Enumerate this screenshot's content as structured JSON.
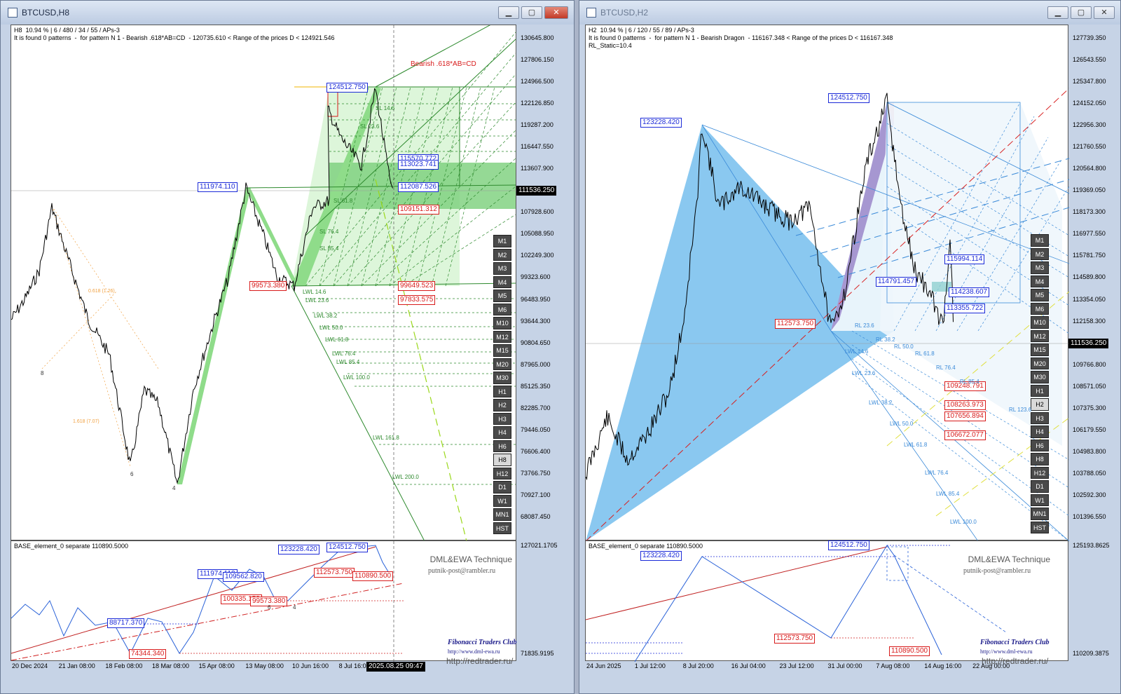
{
  "left": {
    "title": "BTCUSD,H8",
    "info": [
      "H8  10.94 % | 6 / 480 / 34 / 55 / APs-3",
      "It is found 0 patterns  -  for pattern N 1 - Bearish .618*AB=CD  - 120735.610 < Range of the prices D < 124921.546"
    ],
    "pattern_name": "Bearish .618*AB=CD",
    "price_scale": [
      "130645.800",
      "127806.150",
      "124966.500",
      "122126.850",
      "119287.200",
      "116447.550",
      "113607.900",
      "110768.250",
      "107928.600",
      "105088.950",
      "102249.300",
      "99323.600",
      "96483.950",
      "93644.300",
      "90804.650",
      "87965.000",
      "85125.350",
      "82285.700",
      "79446.050",
      "76606.400",
      "73766.750",
      "70927.100",
      "68087.450"
    ],
    "current_price": "111536.250",
    "sub_scale": [
      "127021.1705",
      "71835.9195"
    ],
    "time_axis": [
      "20 Dec 2024",
      "21 Jan 08:00",
      "18 Feb 08:00",
      "18 Mar 08:00",
      "15 Apr 08:00",
      "13 May 08:00",
      "10 Jun 16:00",
      "8 Jul 16:00",
      "5"
    ],
    "crosshair_time": "2025.08.25 09:47",
    "timeframes": [
      "M1",
      "M2",
      "M3",
      "M4",
      "M5",
      "M6",
      "M10",
      "M12",
      "M15",
      "M20",
      "M30",
      "H1",
      "H2",
      "H3",
      "H4",
      "H6",
      "H8",
      "H12",
      "D1",
      "W1",
      "MN1",
      "HST"
    ],
    "selected_tf": "H8",
    "sub_title": "BASE_element_0 separate 110890.5000",
    "price_labels_main": [
      {
        "text": "124512.750",
        "color": "b"
      },
      {
        "text": "115570.772",
        "color": "b"
      },
      {
        "text": "113023.741",
        "color": "b"
      },
      {
        "text": "111974.110",
        "color": "b"
      },
      {
        "text": "112087.526",
        "color": "b"
      },
      {
        "text": "109151.312",
        "color": "r"
      },
      {
        "text": "99573.380",
        "color": "r"
      },
      {
        "text": "99649.523",
        "color": "r"
      },
      {
        "text": "97833.575",
        "color": "r"
      }
    ],
    "levels_main": [
      "LWL 14.6",
      "LWL 23.6",
      "LWL 38.2",
      "LWL 50.0",
      "LWL 61.8",
      "LWL 76.4",
      "LWL 85.4",
      "LWL 100.0",
      "LWL 161.8",
      "LWL 200.0",
      "SL 61.8",
      "SL 76.4",
      "SL 85.4",
      "SL 14.6",
      "SL 23.6"
    ],
    "price_labels_sub": [
      {
        "text": "123228.420",
        "color": "b"
      },
      {
        "text": "124512.750",
        "color": "b"
      },
      {
        "text": "111974.110",
        "color": "b"
      },
      {
        "text": "109562.820",
        "color": "b"
      },
      {
        "text": "112573.750",
        "color": "r"
      },
      {
        "text": "110890.500",
        "color": "r"
      },
      {
        "text": "100335.150",
        "color": "r"
      },
      {
        "text": "99573.380",
        "color": "r"
      },
      {
        "text": "88717.370",
        "color": "b"
      },
      {
        "text": "74344.340",
        "color": "r"
      }
    ],
    "fib_small": [
      "0.618 (1.26)",
      "1.618 (7.07)"
    ],
    "points": [
      "8",
      "6",
      "4",
      "4",
      "6"
    ]
  },
  "right": {
    "title": "BTCUSD,H2",
    "info": [
      "H2  10.94 % | 6 / 120 / 55 / 89 / APs-3",
      "It is found 0 patterns  -  for pattern N 1 - Bearish Dragon  - 116167.348 < Range of the prices D < 116167.348",
      "RL_Static=10.4"
    ],
    "price_scale": [
      "127739.350",
      "126543.550",
      "125347.800",
      "124152.050",
      "122956.300",
      "121760.550",
      "120564.800",
      "119369.050",
      "118173.300",
      "116977.550",
      "115781.750",
      "114589.800",
      "113354.050",
      "112158.300",
      "110962.550",
      "109766.800",
      "108571.050",
      "107375.300",
      "106179.550",
      "104983.800",
      "103788.050",
      "102592.300",
      "101396.550"
    ],
    "current_price": "111536.250",
    "sub_scale": [
      "125193.8625",
      "110209.3875"
    ],
    "time_axis": [
      "24 Jun 2025",
      "1 Jul 12:00",
      "8 Jul 20:00",
      "16 Jul 04:00",
      "23 Jul 12:00",
      "31 Jul 00:00",
      "7 Aug 08:00",
      "14 Aug 16:00",
      "22 Aug 00:00"
    ],
    "timeframes": [
      "M1",
      "M2",
      "M3",
      "M4",
      "M5",
      "M6",
      "M10",
      "M12",
      "M15",
      "M20",
      "M30",
      "H1",
      "H2",
      "H3",
      "H4",
      "H6",
      "H8",
      "H12",
      "D1",
      "W1",
      "MN1",
      "HST"
    ],
    "selected_tf": "H2",
    "sub_title": "BASE_element_0 separate 110890.5000",
    "price_labels_main": [
      {
        "text": "124512.750",
        "color": "b"
      },
      {
        "text": "123228.420",
        "color": "b"
      },
      {
        "text": "115994.114",
        "color": "b"
      },
      {
        "text": "114791.457",
        "color": "b"
      },
      {
        "text": "114238.607",
        "color": "b"
      },
      {
        "text": "113355.722",
        "color": "b"
      },
      {
        "text": "112573.750",
        "color": "r"
      },
      {
        "text": "109248.791",
        "color": "r"
      },
      {
        "text": "108263.973",
        "color": "r"
      },
      {
        "text": "107656.894",
        "color": "r"
      },
      {
        "text": "106672.077",
        "color": "r"
      }
    ],
    "levels_main": [
      "LWL 14.6",
      "LWL 23.6",
      "LWL 38.2",
      "LWL 50.0",
      "LWL 61.8",
      "LWL 76.4",
      "LWL 85.4",
      "LWL 100.0",
      "RL 23.6",
      "RL 38.2",
      "RL 50.0",
      "RL 61.8",
      "RL 76.4",
      "RL 123.6",
      "RL 85.4"
    ],
    "price_labels_sub": [
      {
        "text": "124512.750",
        "color": "b"
      },
      {
        "text": "123228.420",
        "color": "b"
      },
      {
        "text": "112573.750",
        "color": "r"
      },
      {
        "text": "110890.500",
        "color": "r"
      }
    ]
  },
  "branding": {
    "name": "DML&EWA Technique",
    "email": "putnik-post@rambler.ru",
    "club": "Fibonacci Traders Club",
    "club_url": "http://www.dml-ewa.ru",
    "site": "http://redtrader.ru/"
  }
}
